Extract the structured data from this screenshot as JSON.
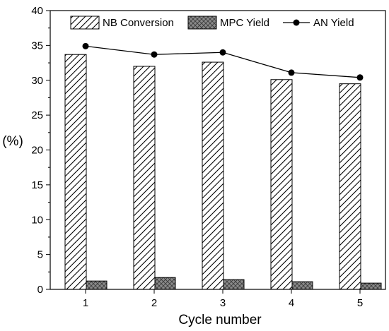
{
  "chart_data": {
    "type": "bar",
    "categories": [
      "1",
      "2",
      "3",
      "4",
      "5"
    ],
    "xlabel": "Cycle number",
    "ylabel": "(%)",
    "ylim": [
      0,
      40
    ],
    "yticks": [
      "0",
      "5",
      "10",
      "15",
      "20",
      "25",
      "30",
      "35",
      "40"
    ],
    "grid": false,
    "legend_position": "top",
    "series": [
      {
        "name": "NB Conversion",
        "kind": "bar",
        "pattern": "diagonal-hatch",
        "values": [
          33.7,
          32.0,
          32.6,
          30.1,
          29.5
        ]
      },
      {
        "name": "MPC Yield",
        "kind": "bar",
        "pattern": "crosshatch",
        "color": "#8a8a8a",
        "values": [
          1.2,
          1.7,
          1.4,
          1.1,
          0.9
        ]
      },
      {
        "name": "AN Yield",
        "kind": "line",
        "marker": "circle",
        "color": "#000000",
        "values": [
          34.9,
          33.7,
          34.0,
          31.1,
          30.4
        ]
      }
    ]
  }
}
